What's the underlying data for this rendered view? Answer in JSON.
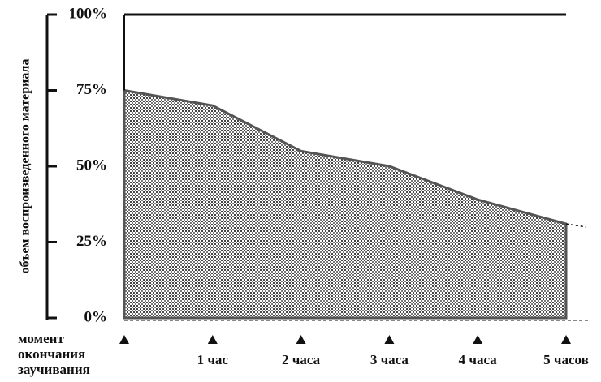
{
  "chart_data": {
    "type": "area",
    "y_label": "объем воспроизведенного материала",
    "categories": [
      "момент окончания заучивания",
      "1 час",
      "2 часа",
      "3 часа",
      "4 часа",
      "5 часов"
    ],
    "values": [
      75,
      70,
      55,
      50,
      39,
      31
    ],
    "color": "#555555",
    "ylim": [
      0,
      100
    ],
    "yticks": [
      {
        "value": 0,
        "label": "0%"
      },
      {
        "value": 25,
        "label": "25%"
      },
      {
        "value": 50,
        "label": "50%"
      },
      {
        "value": 75,
        "label": "75%"
      },
      {
        "value": 100,
        "label": "100%"
      }
    ]
  }
}
